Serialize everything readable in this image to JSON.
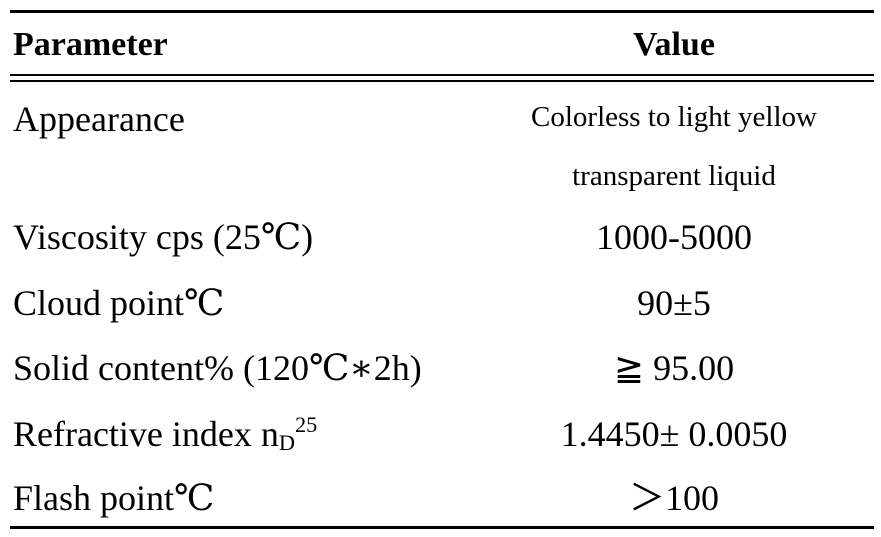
{
  "header": {
    "parameter": "Parameter",
    "value": "Value"
  },
  "rows": [
    {
      "parameter": "Appearance",
      "value_line1": "Colorless to light yellow",
      "value_line2": "transparent liquid"
    },
    {
      "parameter": "Viscosity cps (25℃)",
      "value": "1000-5000"
    },
    {
      "parameter": "Cloud point℃",
      "value": "90±5"
    },
    {
      "parameter": "Solid content% (120℃∗2h)",
      "value": "≧ 95.00"
    },
    {
      "parameter_main": "Refractive index n",
      "parameter_sub": "D",
      "parameter_sup": "25",
      "value": "1.4450± 0.0050"
    },
    {
      "parameter": "Flash point℃",
      "value": "＞100"
    }
  ]
}
